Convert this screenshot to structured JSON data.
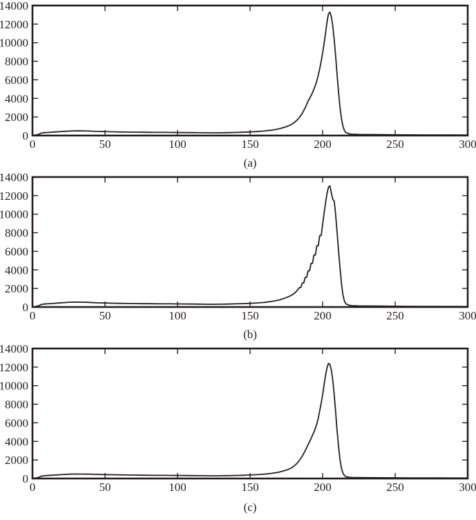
{
  "figure": {
    "background": "#ffffff",
    "line_color": "#231f20",
    "axis_color": "#231f20",
    "text_color": "#231f20"
  },
  "chart_data": [
    {
      "id": "a",
      "type": "line",
      "caption": "(a)",
      "title": "",
      "xlabel": "",
      "ylabel": "",
      "xlim": [
        0,
        300
      ],
      "ylim": [
        0,
        14000
      ],
      "x_ticks": [
        0,
        50,
        100,
        150,
        200,
        250,
        300
      ],
      "y_ticks": [
        0,
        2000,
        4000,
        6000,
        8000,
        10000,
        12000,
        14000
      ],
      "grid": false,
      "legend": null,
      "peak": {
        "x": 205,
        "y": 13300
      },
      "points": [
        [
          0,
          0
        ],
        [
          2,
          60
        ],
        [
          4,
          120
        ],
        [
          6,
          260
        ],
        [
          8,
          310
        ],
        [
          10,
          330
        ],
        [
          13,
          360
        ],
        [
          16,
          390
        ],
        [
          20,
          430
        ],
        [
          24,
          470
        ],
        [
          28,
          500
        ],
        [
          32,
          510
        ],
        [
          36,
          500
        ],
        [
          40,
          480
        ],
        [
          44,
          450
        ],
        [
          48,
          430
        ],
        [
          52,
          415
        ],
        [
          56,
          400
        ],
        [
          60,
          390
        ],
        [
          65,
          375
        ],
        [
          70,
          365
        ],
        [
          75,
          355
        ],
        [
          80,
          350
        ],
        [
          85,
          345
        ],
        [
          90,
          340
        ],
        [
          95,
          335
        ],
        [
          100,
          330
        ],
        [
          105,
          320
        ],
        [
          110,
          315
        ],
        [
          115,
          305
        ],
        [
          120,
          295
        ],
        [
          125,
          290
        ],
        [
          130,
          300
        ],
        [
          135,
          315
        ],
        [
          140,
          335
        ],
        [
          145,
          360
        ],
        [
          150,
          390
        ],
        [
          155,
          430
        ],
        [
          160,
          490
        ],
        [
          165,
          580
        ],
        [
          170,
          720
        ],
        [
          175,
          950
        ],
        [
          178,
          1150
        ],
        [
          180,
          1350
        ],
        [
          182,
          1600
        ],
        [
          184,
          1950
        ],
        [
          186,
          2400
        ],
        [
          188,
          3000
        ],
        [
          190,
          3700
        ],
        [
          192,
          4300
        ],
        [
          193,
          4600
        ],
        [
          194,
          5000
        ],
        [
          195,
          5400
        ],
        [
          196,
          5900
        ],
        [
          197,
          6500
        ],
        [
          198,
          7200
        ],
        [
          199,
          8000
        ],
        [
          200,
          8900
        ],
        [
          201,
          9900
        ],
        [
          202,
          11000
        ],
        [
          203,
          12200
        ],
        [
          204,
          13100
        ],
        [
          205,
          13300
        ],
        [
          206,
          12800
        ],
        [
          207,
          11800
        ],
        [
          208,
          10300
        ],
        [
          209,
          8500
        ],
        [
          210,
          6500
        ],
        [
          211,
          4600
        ],
        [
          212,
          3000
        ],
        [
          213,
          1800
        ],
        [
          214,
          1000
        ],
        [
          215,
          550
        ],
        [
          216,
          320
        ],
        [
          218,
          200
        ],
        [
          220,
          150
        ],
        [
          225,
          120
        ],
        [
          230,
          110
        ],
        [
          240,
          95
        ],
        [
          250,
          85
        ],
        [
          260,
          75
        ],
        [
          270,
          70
        ],
        [
          280,
          65
        ],
        [
          290,
          60
        ],
        [
          300,
          55
        ]
      ]
    },
    {
      "id": "b",
      "type": "line",
      "caption": "(b)",
      "title": "",
      "xlabel": "",
      "ylabel": "",
      "xlim": [
        0,
        300
      ],
      "ylim": [
        0,
        14000
      ],
      "x_ticks": [
        0,
        50,
        100,
        150,
        200,
        250,
        300
      ],
      "y_ticks": [
        0,
        2000,
        4000,
        6000,
        8000,
        10000,
        12000,
        14000
      ],
      "grid": false,
      "legend": null,
      "peak": {
        "x": 205,
        "y": 13050
      },
      "points": [
        [
          0,
          0
        ],
        [
          2,
          60
        ],
        [
          4,
          130
        ],
        [
          6,
          270
        ],
        [
          8,
          320
        ],
        [
          10,
          340
        ],
        [
          14,
          380
        ],
        [
          18,
          430
        ],
        [
          22,
          480
        ],
        [
          26,
          520
        ],
        [
          30,
          530
        ],
        [
          34,
          525
        ],
        [
          38,
          505
        ],
        [
          42,
          470
        ],
        [
          46,
          445
        ],
        [
          50,
          430
        ],
        [
          55,
          410
        ],
        [
          60,
          395
        ],
        [
          65,
          380
        ],
        [
          70,
          370
        ],
        [
          75,
          360
        ],
        [
          80,
          355
        ],
        [
          85,
          350
        ],
        [
          90,
          345
        ],
        [
          95,
          340
        ],
        [
          100,
          335
        ],
        [
          105,
          330
        ],
        [
          110,
          320
        ],
        [
          115,
          310
        ],
        [
          120,
          300
        ],
        [
          125,
          295
        ],
        [
          130,
          305
        ],
        [
          135,
          320
        ],
        [
          140,
          340
        ],
        [
          145,
          365
        ],
        [
          150,
          395
        ],
        [
          155,
          440
        ],
        [
          160,
          500
        ],
        [
          165,
          600
        ],
        [
          170,
          750
        ],
        [
          174,
          950
        ],
        [
          177,
          1150
        ],
        [
          180,
          1400
        ],
        [
          182,
          1700
        ],
        [
          184,
          2100
        ],
        [
          185,
          2100
        ],
        [
          186,
          2600
        ],
        [
          187,
          2600
        ],
        [
          188,
          3200
        ],
        [
          189,
          3200
        ],
        [
          190,
          3900
        ],
        [
          191,
          3900
        ],
        [
          192,
          4700
        ],
        [
          193,
          4700
        ],
        [
          194,
          5600
        ],
        [
          195,
          5600
        ],
        [
          196,
          6600
        ],
        [
          197,
          6600
        ],
        [
          198,
          7700
        ],
        [
          199,
          7700
        ],
        [
          200,
          8900
        ],
        [
          201,
          10100
        ],
        [
          202,
          11200
        ],
        [
          203,
          12200
        ],
        [
          204,
          12900
        ],
        [
          205,
          13050
        ],
        [
          206,
          12300
        ],
        [
          207,
          11600
        ],
        [
          208,
          11400
        ],
        [
          209,
          9900
        ],
        [
          210,
          8000
        ],
        [
          211,
          6000
        ],
        [
          212,
          4200
        ],
        [
          213,
          2500
        ],
        [
          214,
          1300
        ],
        [
          215,
          650
        ],
        [
          216,
          350
        ],
        [
          218,
          200
        ],
        [
          220,
          150
        ],
        [
          225,
          120
        ],
        [
          230,
          110
        ],
        [
          240,
          95
        ],
        [
          250,
          85
        ],
        [
          260,
          75
        ],
        [
          270,
          70
        ],
        [
          280,
          65
        ],
        [
          290,
          60
        ],
        [
          300,
          55
        ]
      ]
    },
    {
      "id": "c",
      "type": "line",
      "caption": "(c)",
      "title": "",
      "xlabel": "",
      "ylabel": "",
      "xlim": [
        0,
        300
      ],
      "ylim": [
        0,
        14000
      ],
      "x_ticks": [
        0,
        50,
        100,
        150,
        200,
        250,
        300
      ],
      "y_ticks": [
        0,
        2000,
        4000,
        6000,
        8000,
        10000,
        12000,
        14000
      ],
      "grid": false,
      "legend": null,
      "peak": {
        "x": 204,
        "y": 12400
      },
      "points": [
        [
          0,
          0
        ],
        [
          2,
          50
        ],
        [
          4,
          110
        ],
        [
          6,
          240
        ],
        [
          8,
          300
        ],
        [
          10,
          320
        ],
        [
          14,
          360
        ],
        [
          18,
          400
        ],
        [
          22,
          440
        ],
        [
          26,
          470
        ],
        [
          30,
          485
        ],
        [
          34,
          480
        ],
        [
          38,
          470
        ],
        [
          42,
          455
        ],
        [
          46,
          440
        ],
        [
          50,
          425
        ],
        [
          55,
          410
        ],
        [
          60,
          395
        ],
        [
          65,
          380
        ],
        [
          70,
          370
        ],
        [
          75,
          360
        ],
        [
          80,
          350
        ],
        [
          85,
          345
        ],
        [
          90,
          340
        ],
        [
          95,
          333
        ],
        [
          100,
          328
        ],
        [
          105,
          320
        ],
        [
          110,
          312
        ],
        [
          115,
          303
        ],
        [
          120,
          295
        ],
        [
          125,
          290
        ],
        [
          130,
          298
        ],
        [
          135,
          310
        ],
        [
          140,
          328
        ],
        [
          145,
          350
        ],
        [
          150,
          378
        ],
        [
          155,
          415
        ],
        [
          160,
          470
        ],
        [
          165,
          560
        ],
        [
          170,
          690
        ],
        [
          175,
          900
        ],
        [
          178,
          1100
        ],
        [
          180,
          1300
        ],
        [
          182,
          1580
        ],
        [
          184,
          1950
        ],
        [
          186,
          2420
        ],
        [
          188,
          3000
        ],
        [
          190,
          3650
        ],
        [
          192,
          4300
        ],
        [
          194,
          5000
        ],
        [
          195,
          5400
        ],
        [
          196,
          5900
        ],
        [
          197,
          6500
        ],
        [
          198,
          7300
        ],
        [
          199,
          8100
        ],
        [
          200,
          9000
        ],
        [
          201,
          10100
        ],
        [
          202,
          11100
        ],
        [
          203,
          11900
        ],
        [
          204,
          12400
        ],
        [
          205,
          12300
        ],
        [
          206,
          11700
        ],
        [
          207,
          10600
        ],
        [
          208,
          9000
        ],
        [
          209,
          7100
        ],
        [
          210,
          5100
        ],
        [
          211,
          3400
        ],
        [
          212,
          2000
        ],
        [
          213,
          1100
        ],
        [
          214,
          580
        ],
        [
          215,
          320
        ],
        [
          216,
          210
        ],
        [
          218,
          140
        ],
        [
          220,
          110
        ],
        [
          225,
          95
        ],
        [
          230,
          90
        ],
        [
          240,
          80
        ],
        [
          250,
          72
        ],
        [
          260,
          66
        ],
        [
          270,
          62
        ],
        [
          280,
          58
        ],
        [
          290,
          55
        ],
        [
          300,
          52
        ]
      ]
    }
  ]
}
